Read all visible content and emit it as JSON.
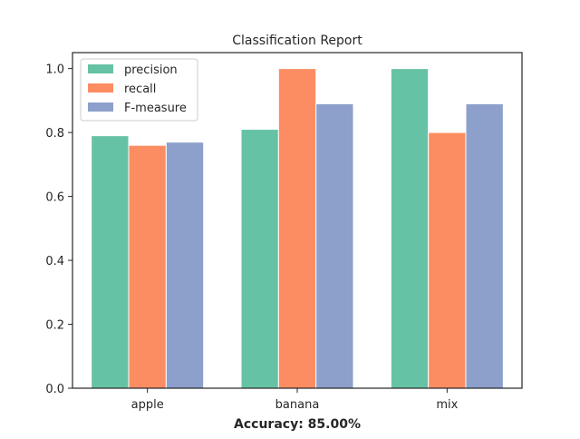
{
  "chart_data": {
    "type": "bar",
    "title": "Classification Report",
    "xlabel": "Accuracy: 85.00%",
    "ylabel": "",
    "categories": [
      "apple",
      "banana",
      "mix"
    ],
    "series": [
      {
        "name": "precision",
        "color": "#66c2a5",
        "values": [
          0.79,
          0.81,
          1.0
        ]
      },
      {
        "name": "recall",
        "color": "#fc8d62",
        "values": [
          0.76,
          1.0,
          0.8
        ]
      },
      {
        "name": "F-measure",
        "color": "#8da0cb",
        "values": [
          0.77,
          0.89,
          0.89
        ]
      }
    ],
    "ylim": [
      0,
      1.05
    ],
    "yticks": [
      "0.0",
      "0.2",
      "0.4",
      "0.6",
      "0.8",
      "1.0"
    ],
    "legend_position": "top-left",
    "grid": false
  }
}
